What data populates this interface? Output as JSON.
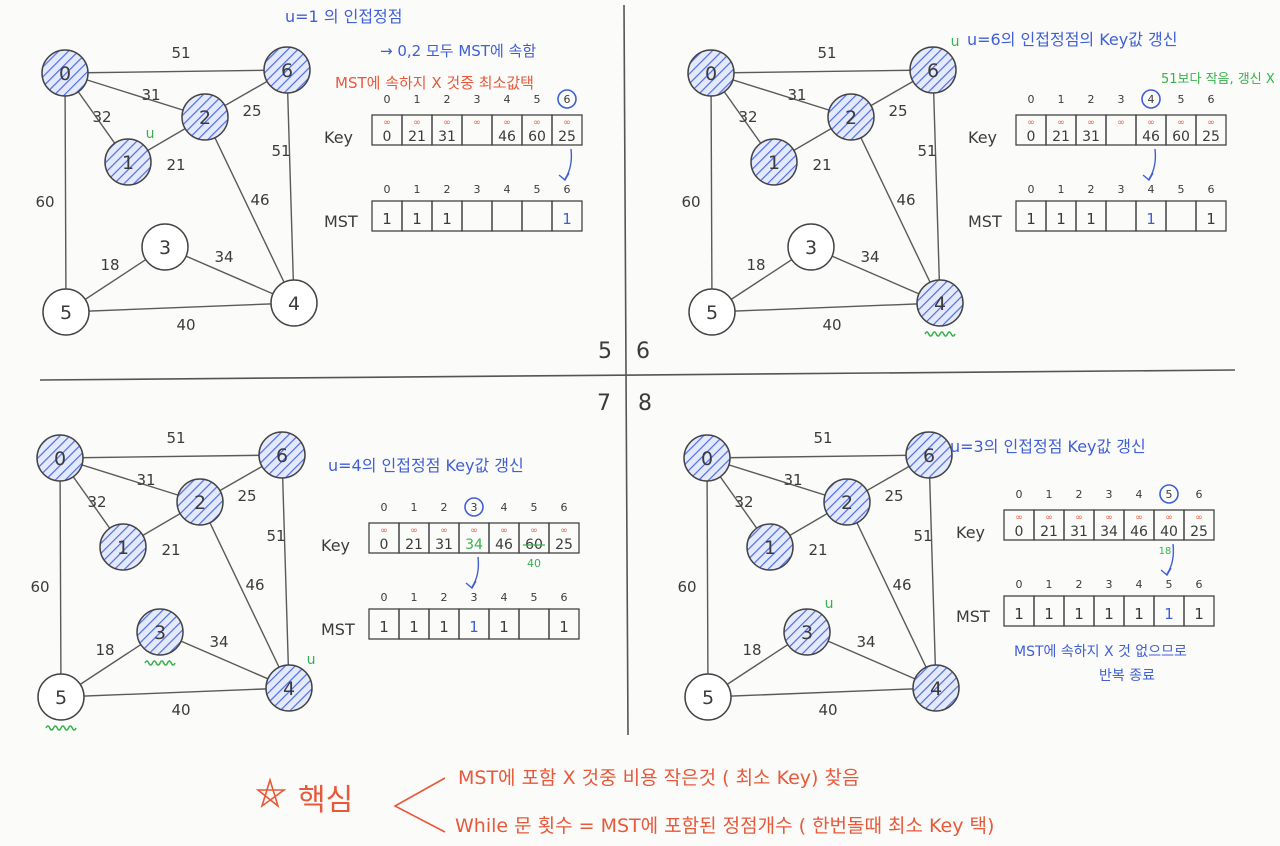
{
  "colors": {
    "ink": "#3b3b3b",
    "blue": "#3f5fd6",
    "red": "#e8593a",
    "green": "#37b24d",
    "hatch": "#4f6fe0"
  },
  "graph": {
    "nodes": [
      "0",
      "1",
      "2",
      "3",
      "4",
      "5",
      "6"
    ],
    "edges": [
      {
        "a": "0",
        "b": "6",
        "w": "51"
      },
      {
        "a": "0",
        "b": "2",
        "w": "31"
      },
      {
        "a": "0",
        "b": "1",
        "w": "32"
      },
      {
        "a": "0",
        "b": "5",
        "w": "60"
      },
      {
        "a": "1",
        "b": "2",
        "w": "21"
      },
      {
        "a": "2",
        "b": "6",
        "w": "25"
      },
      {
        "a": "2",
        "b": "4",
        "w": "46"
      },
      {
        "a": "6",
        "b": "4",
        "w": "51"
      },
      {
        "a": "5",
        "b": "3",
        "w": "18"
      },
      {
        "a": "3",
        "b": "4",
        "w": "34"
      },
      {
        "a": "5",
        "b": "4",
        "w": "40"
      }
    ]
  },
  "table_labels": {
    "key": "Key",
    "mst": "MST",
    "inf": "∞"
  },
  "quadrant_numbers": [
    "5",
    "6",
    "7",
    "8"
  ],
  "panels": [
    {
      "notes": [
        "u=1 의 인접정점",
        "→ 0,2 모두 MST에 속함",
        "MST에 속하지 X 것중 최소값택"
      ],
      "mst_nodes": [
        "0",
        "1",
        "2",
        "6"
      ],
      "u_marker": {
        "node": "1",
        "text": "u"
      },
      "wavy_nodes": [],
      "key_values": [
        "0",
        "21",
        "31",
        "",
        "46",
        "60",
        "25"
      ],
      "mst_values": [
        "1",
        "1",
        "1",
        "",
        "",
        "",
        "1"
      ],
      "selected_index": 6,
      "annotation": ""
    },
    {
      "notes": [
        "u=6의 인접정점의 Key값 갱신"
      ],
      "mst_nodes": [
        "0",
        "1",
        "2",
        "6",
        "4"
      ],
      "u_marker": {
        "node": "6",
        "text": "u"
      },
      "wavy_nodes": [
        "4"
      ],
      "key_values": [
        "0",
        "21",
        "31",
        "",
        "46",
        "60",
        "25"
      ],
      "mst_values": [
        "1",
        "1",
        "1",
        "",
        "1",
        "",
        "1"
      ],
      "selected_index": 4,
      "annotation": "51보다 작음, 갱신 X"
    },
    {
      "notes": [
        "u=4의 인접정점 Key값 갱신"
      ],
      "mst_nodes": [
        "0",
        "1",
        "2",
        "6",
        "4",
        "3"
      ],
      "u_marker": {
        "node": "4",
        "text": "u"
      },
      "wavy_nodes": [
        "3",
        "5"
      ],
      "key_values": [
        "0",
        "21",
        "31",
        "34",
        "46",
        "60",
        "25"
      ],
      "key_corrections": [
        {
          "index": 5,
          "value": "40"
        }
      ],
      "mst_values": [
        "1",
        "1",
        "1",
        "1",
        "1",
        "",
        "1"
      ],
      "selected_index": 3,
      "annotation": ""
    },
    {
      "notes": [
        "u=3의 인접정점 Key값 갱신"
      ],
      "mst_nodes": [
        "0",
        "1",
        "2",
        "6",
        "4",
        "3"
      ],
      "u_marker": {
        "node": "3",
        "text": "u"
      },
      "wavy_nodes": [],
      "key_values": [
        "0",
        "21",
        "31",
        "34",
        "46",
        "40",
        "25"
      ],
      "key_corrections": [
        {
          "index": 5,
          "value": "18"
        }
      ],
      "mst_values": [
        "1",
        "1",
        "1",
        "1",
        "1",
        "1",
        "1"
      ],
      "selected_index": 5,
      "annotation": "",
      "footer": [
        "MST에 속하지 X 것 없으므로",
        "반복 종료"
      ]
    }
  ],
  "summary": {
    "title": "핵심",
    "lines": [
      "MST에 포함 X 것중 비용 작은것 ( 최소 Key) 찾음",
      "While 문 횟수 = MST에 포함된 정점개수 ( 한번돌때 최소 Key 택)"
    ]
  }
}
